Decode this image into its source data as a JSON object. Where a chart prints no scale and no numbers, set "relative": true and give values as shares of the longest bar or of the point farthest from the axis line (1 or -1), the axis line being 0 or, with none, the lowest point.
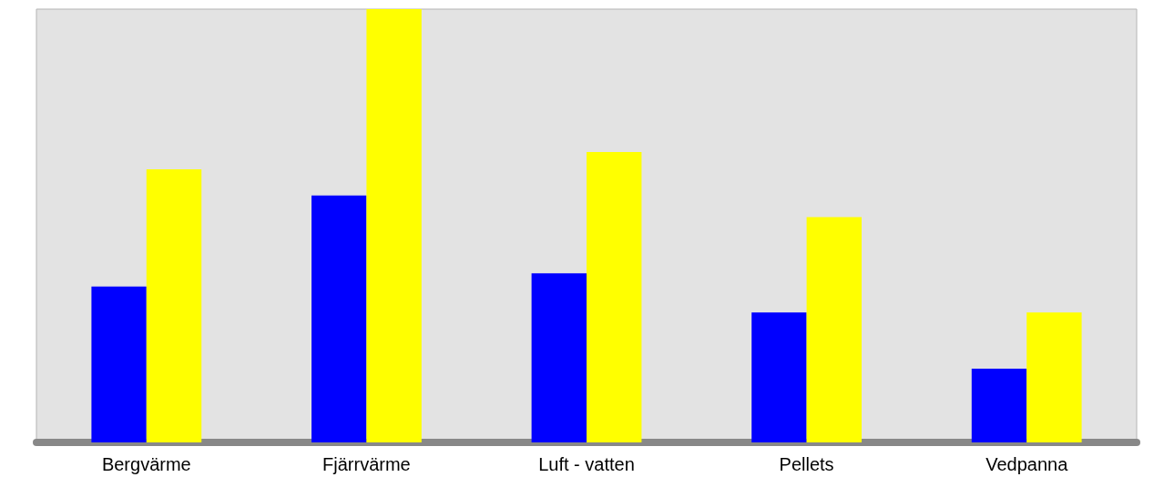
{
  "chart_data": {
    "type": "bar",
    "relative": true,
    "categories": [
      "Bergvärme",
      "Fjärrvärme",
      "Luft - vatten",
      "Pellets",
      "Vedpanna"
    ],
    "series": [
      {
        "color": "#0000ff",
        "values": [
          0.36,
          0.57,
          0.39,
          0.3,
          0.17
        ]
      },
      {
        "color": "#ffff00",
        "values": [
          0.63,
          1,
          0.67,
          0.52,
          0.3
        ]
      }
    ],
    "data_labels": false
  }
}
